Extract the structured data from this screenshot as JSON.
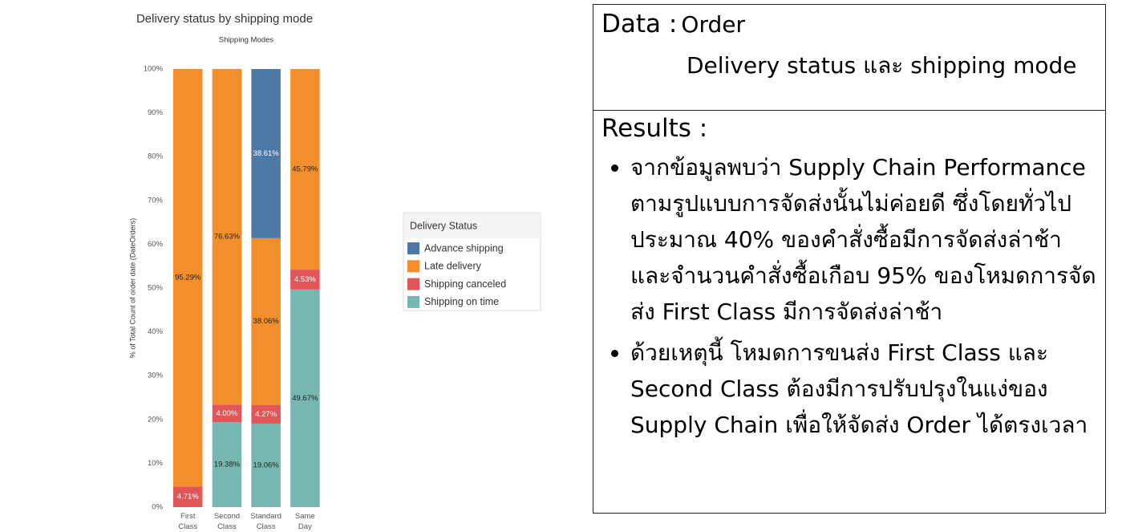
{
  "chart_data": {
    "type": "stacked_bar",
    "title": "Delivery status by shipping mode",
    "subtitle": "Shipping Modes",
    "y_label": "% of Total Count of order date (DateOrders)",
    "legend_title": "Delivery Status",
    "categories": [
      "First Class",
      "Second Class",
      "Standard Class",
      "Same Day"
    ],
    "series": [
      {
        "name": "Advance shipping",
        "color": "#4e79a7",
        "values": [
          null,
          null,
          38.61,
          null
        ],
        "value_labels": [
          null,
          null,
          "38.61%",
          null
        ]
      },
      {
        "name": "Late delivery",
        "color": "#f28e2b",
        "values": [
          95.29,
          76.63,
          38.06,
          45.79
        ],
        "value_labels": [
          "95.29%",
          "76.63%",
          "38.06%",
          "45.79%"
        ]
      },
      {
        "name": "Shipping canceled",
        "color": "#e15759",
        "values": [
          4.71,
          4.0,
          4.27,
          4.53
        ],
        "value_labels": [
          "4.71%",
          "4.00%",
          "4.27%",
          "4.53%"
        ]
      },
      {
        "name": "Shipping on time",
        "color": "#76b7b2",
        "values": [
          null,
          19.38,
          19.06,
          49.67
        ],
        "value_labels": [
          null,
          "19.38%",
          "19.06%",
          "49.67%"
        ]
      }
    ],
    "ylim": [
      0,
      100
    ],
    "yticks": [
      {
        "value": 0,
        "label": "0%"
      },
      {
        "value": 10,
        "label": "10%"
      },
      {
        "value": 20,
        "label": "20%"
      },
      {
        "value": 30,
        "label": "30%"
      },
      {
        "value": 40,
        "label": "40%"
      },
      {
        "value": 50,
        "label": "50%"
      },
      {
        "value": 60,
        "label": "60%"
      },
      {
        "value": 70,
        "label": "70%"
      },
      {
        "value": 80,
        "label": "80%"
      },
      {
        "value": 90,
        "label": "90%"
      },
      {
        "value": 100,
        "label": "100%"
      }
    ],
    "grid": false
  },
  "panel": {
    "data_label": "Data :",
    "data_value": "Order",
    "data_detail": "Delivery status และ shipping mode",
    "results_label": "Results :",
    "bullets": [
      "จากข้อมูลพบว่า Supply Chain Performance ตามรูปแบบการจัดส่งนั้นไม่ค่อยดี ซึ่งโดยทั่วไปประมาณ 40% ของคำสั่งซื้อมีการจัดส่งล่าช้า และจำนวนคำสั่งซื้อเกือบ 95% ของโหมดการจัดส่ง First Class มีการจัดส่งล่าช้า",
      "ด้วยเหตุนี้ โหมดการขนส่ง First Class และ Second Class ต้องมีการปรับปรุงในแง่ของ Supply Chain เพื่อให้จัดส่ง Order ได้ตรงเวลา"
    ]
  }
}
